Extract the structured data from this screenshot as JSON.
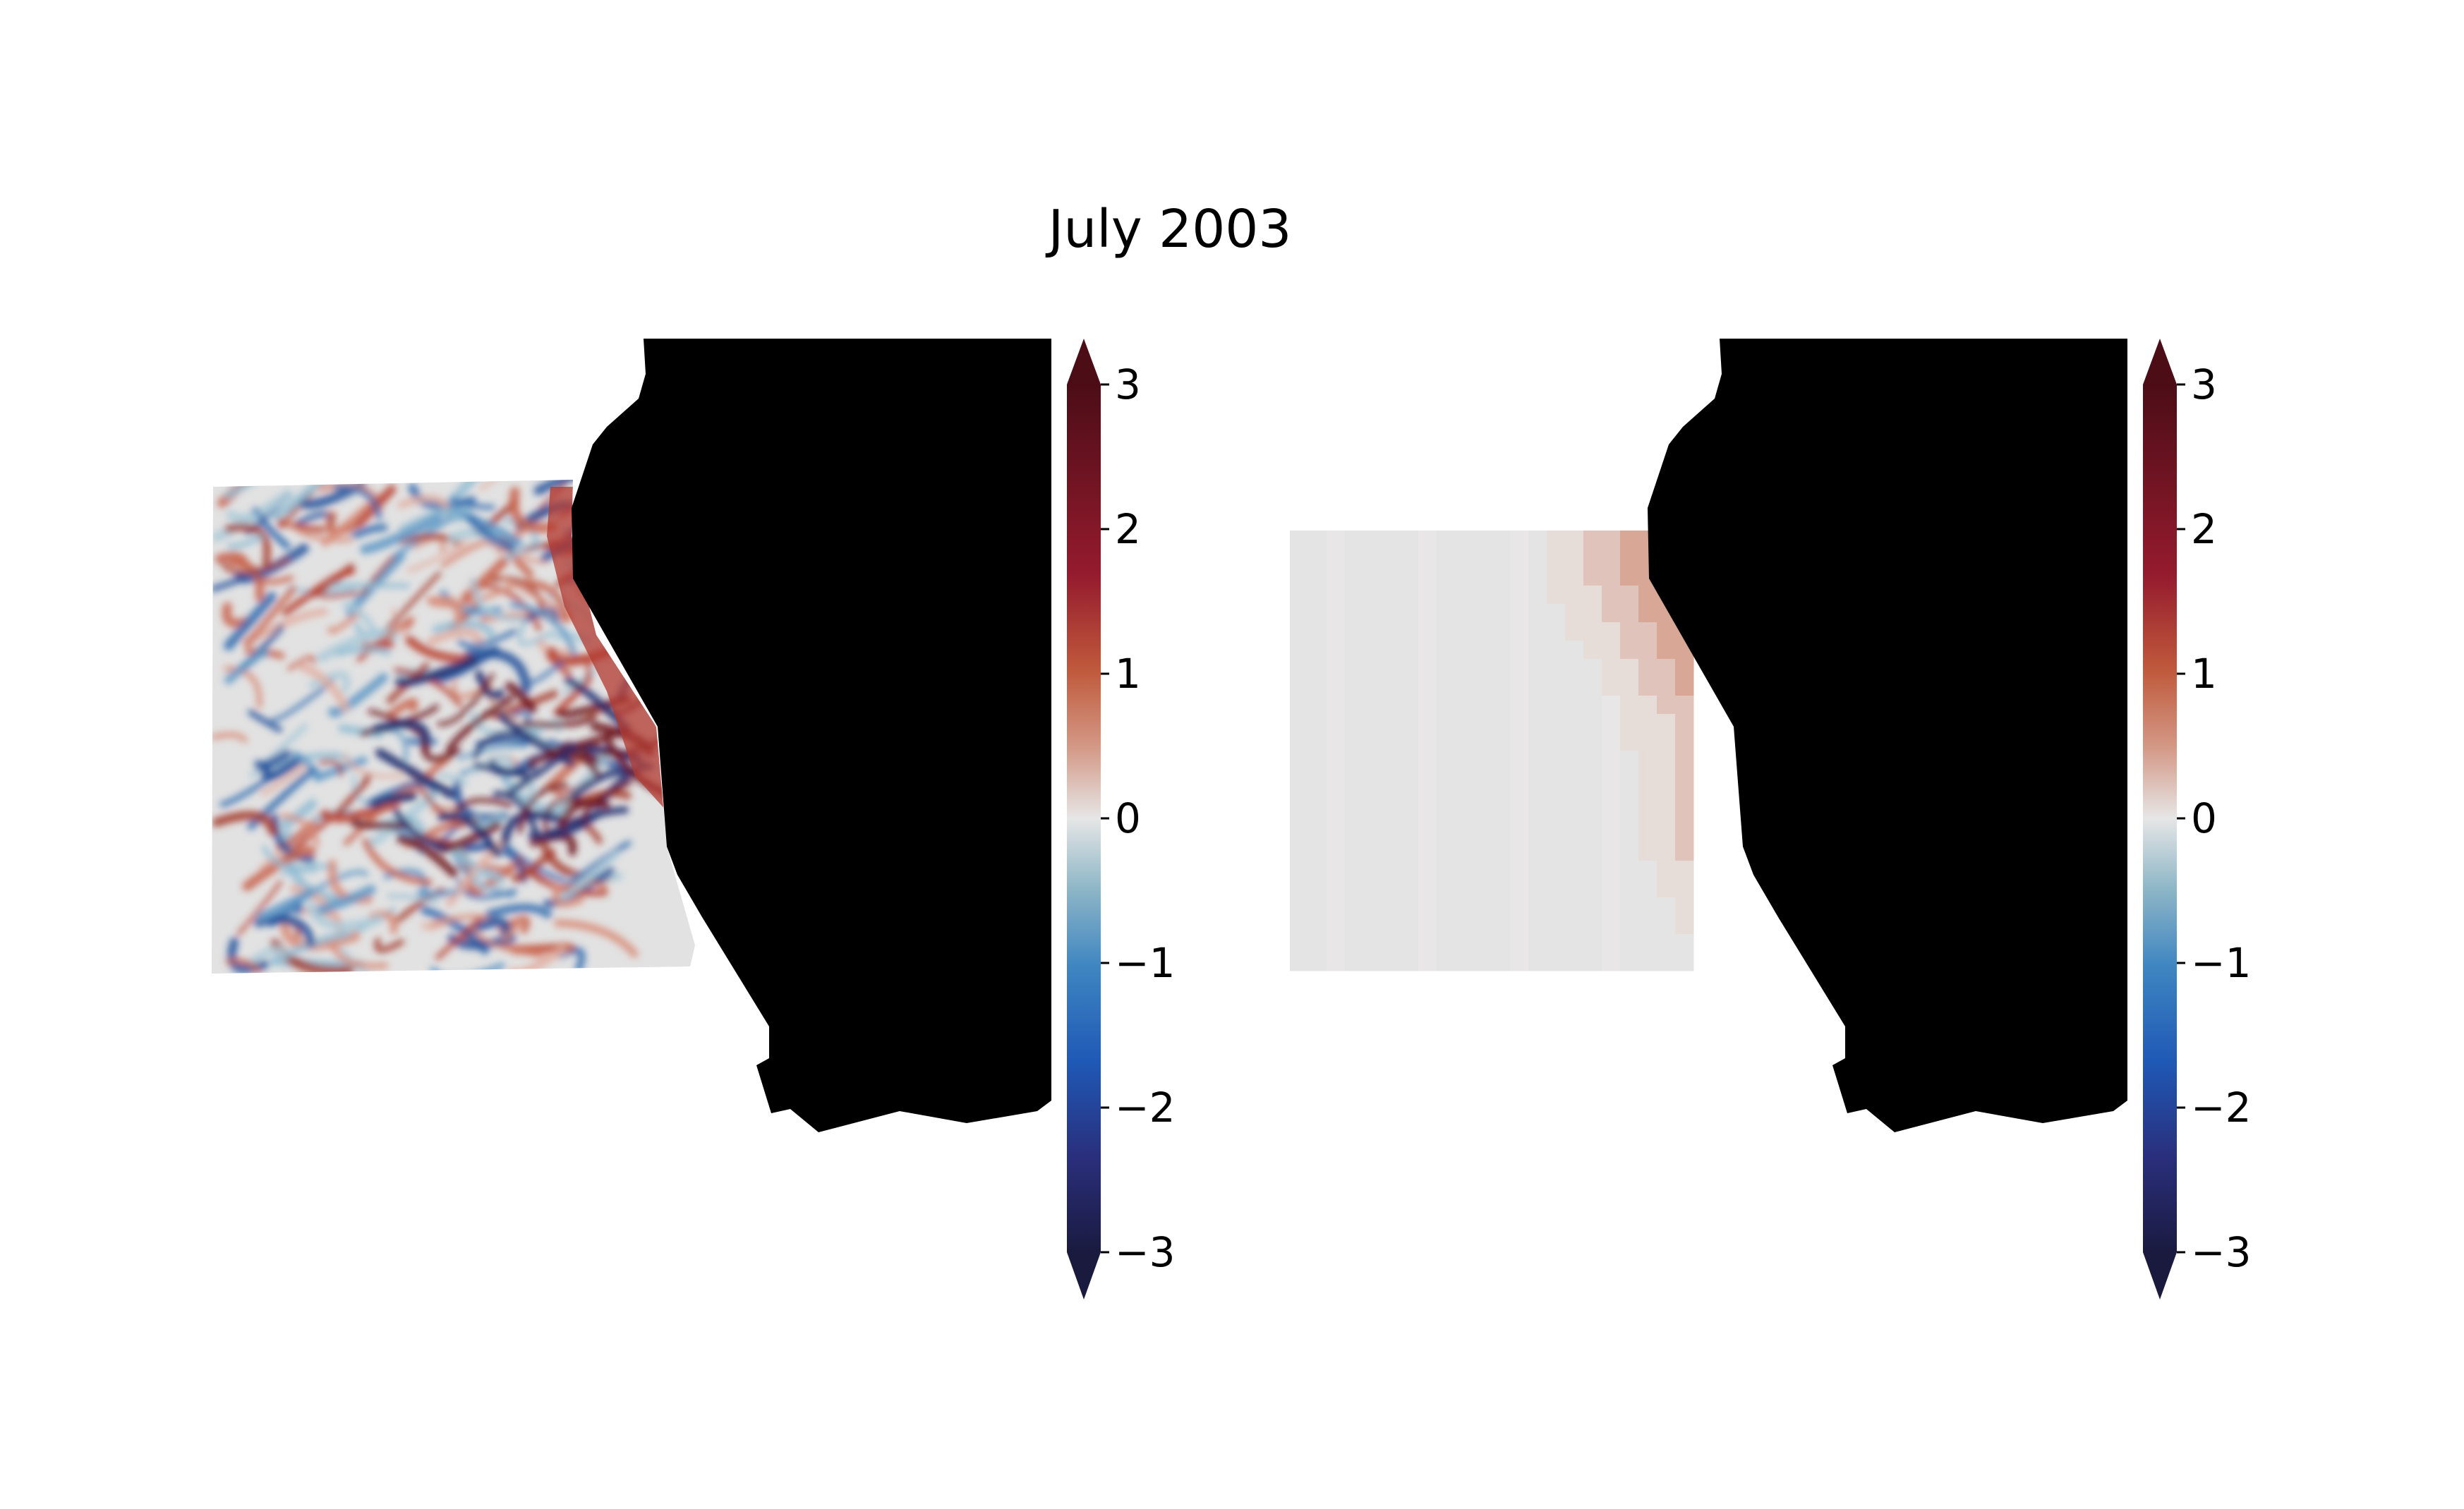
{
  "figure": {
    "title": "July 2003"
  },
  "chart_data": [
    {
      "type": "heatmap",
      "panel": "left",
      "title": "",
      "xlabel": "",
      "ylabel": "",
      "resolution": "high",
      "land_color": "#000000",
      "colormap": [
        "#1a1a3f",
        "#2a2f7c",
        "#1f59b6",
        "#3f86c1",
        "#8fb7c7",
        "#e6e6e6",
        "#d49a88",
        "#c05a3c",
        "#951b2e",
        "#4c0d17"
      ],
      "colorbar": {
        "ticks": [
          3,
          2,
          1,
          0,
          -1,
          -2,
          -3
        ],
        "tick_labels": [
          "3",
          "2",
          "1",
          "0",
          "−1",
          "−2",
          "−3"
        ],
        "vmin": -3,
        "vmax": 3,
        "extend": "both"
      }
    },
    {
      "type": "heatmap",
      "panel": "right",
      "title": "",
      "xlabel": "",
      "ylabel": "",
      "resolution": "coarse",
      "land_color": "#000000",
      "colormap": [
        "#1a1a3f",
        "#2a2f7c",
        "#1f59b6",
        "#3f86c1",
        "#8fb7c7",
        "#e6e6e6",
        "#d49a88",
        "#c05a3c",
        "#951b2e",
        "#4c0d17"
      ],
      "colorbar": {
        "ticks": [
          3,
          2,
          1,
          0,
          -1,
          -2,
          -3
        ],
        "tick_labels": [
          "3",
          "2",
          "1",
          "0",
          "−1",
          "−2",
          "−3"
        ],
        "vmin": -3,
        "vmax": 3,
        "extend": "both"
      }
    }
  ]
}
